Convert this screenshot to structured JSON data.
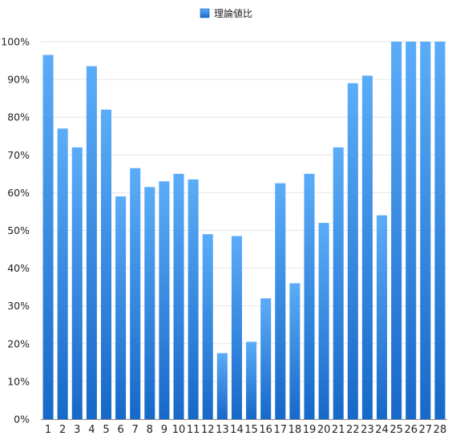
{
  "chart_data": {
    "type": "bar",
    "categories": [
      "1",
      "2",
      "3",
      "4",
      "5",
      "6",
      "7",
      "8",
      "9",
      "10",
      "11",
      "12",
      "13",
      "14",
      "15",
      "16",
      "17",
      "18",
      "19",
      "20",
      "21",
      "22",
      "23",
      "24",
      "25",
      "26",
      "27",
      "28"
    ],
    "series": [
      {
        "name": "理論値比",
        "values": [
          96.5,
          77,
          72,
          93.5,
          82,
          59,
          66.5,
          61.5,
          63,
          65,
          63.5,
          49,
          17.5,
          48.5,
          20.5,
          32,
          62.5,
          36,
          65,
          52,
          72,
          89,
          91,
          54,
          100,
          100,
          100,
          100
        ]
      }
    ],
    "title": "",
    "xlabel": "",
    "ylabel": "",
    "ylim": [
      0,
      100
    ],
    "y_ticks": [
      "0%",
      "10%",
      "20%",
      "30%",
      "40%",
      "50%",
      "60%",
      "70%",
      "80%",
      "90%",
      "100%"
    ],
    "legend_position": "top-center",
    "grid": true,
    "colors": {
      "bar_top": "#5bacf8",
      "bar_bottom": "#1769c9",
      "grid": "#e6e6e6",
      "axis": "#888888",
      "text": "#222222"
    }
  }
}
